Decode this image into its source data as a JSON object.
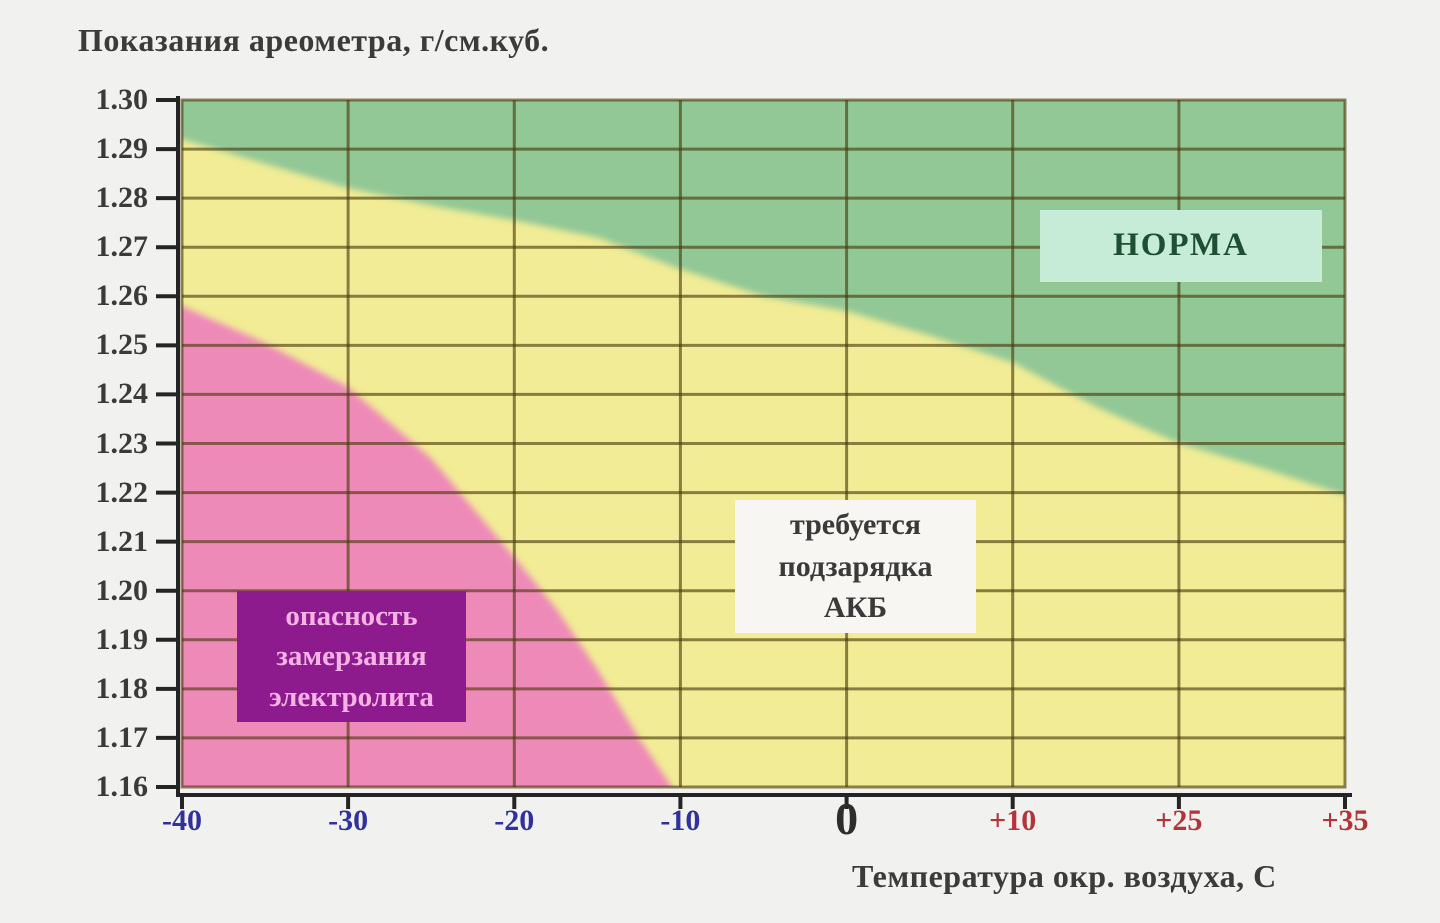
{
  "title": "Показания ареометра, г/см.куб.",
  "x_axis_title": "Температура окр. воздуха, С",
  "chart_data": {
    "type": "area",
    "title": "Показания ареометра, г/см.куб.",
    "xlabel": "Температура окр. воздуха, С",
    "ylabel": "Показания ареометра, г/см.куб.",
    "ylim": [
      1.16,
      1.3
    ],
    "grid": true,
    "y_tick_labels": [
      "1.30",
      "1.29",
      "1.28",
      "1.27",
      "1.26",
      "1.25",
      "1.24",
      "1.23",
      "1.22",
      "1.21",
      "1.20",
      "1.19",
      "1.18",
      "1.17",
      "1.16"
    ],
    "x_tick_labels": [
      {
        "label": "-40",
        "color": "#31319b",
        "emphasis": false
      },
      {
        "label": "-30",
        "color": "#31319b",
        "emphasis": false
      },
      {
        "label": "-20",
        "color": "#31319b",
        "emphasis": false
      },
      {
        "label": "-10",
        "color": "#31319b",
        "emphasis": false
      },
      {
        "label": "0",
        "color": "#2d2d2d",
        "emphasis": true
      },
      {
        "label": "+10",
        "color": "#b33338",
        "emphasis": false
      },
      {
        "label": "+25",
        "color": "#b33338",
        "emphasis": false
      },
      {
        "label": "+35",
        "color": "#b33338",
        "emphasis": false
      }
    ],
    "colors": {
      "normal_zone": "#92c796",
      "recharge_zone": "#f1ec95",
      "freeze_zone": "#ee8ab8",
      "gridline": "rgba(73,55,10,0.62)",
      "axis": "#242424",
      "background": "#f1f1ef"
    },
    "boundaries": {
      "note": "x given as category index 0..7 over ticks [-40,-30,-20,-10,0,+10,+25,+35]; y is hydrometer reading g/cm3",
      "normal_over_recharge": {
        "points": [
          [
            0,
            1.292
          ],
          [
            0.5,
            1.287
          ],
          [
            1,
            1.282
          ],
          [
            1.5,
            1.2785
          ],
          [
            2,
            1.2755
          ],
          [
            2.5,
            1.272
          ],
          [
            3,
            1.2655
          ],
          [
            3.5,
            1.26
          ],
          [
            4,
            1.257
          ],
          [
            4.5,
            1.252
          ],
          [
            5,
            1.2465
          ],
          [
            5.5,
            1.2375
          ],
          [
            6,
            1.23
          ],
          [
            6.5,
            1.225
          ],
          [
            7,
            1.2195
          ]
        ]
      },
      "freeze_under_recharge": {
        "points": [
          [
            0,
            1.258
          ],
          [
            0.5,
            1.2505
          ],
          [
            1,
            1.2415
          ],
          [
            1.5,
            1.227
          ],
          [
            2,
            1.2068
          ],
          [
            2.25,
            1.1965
          ],
          [
            2.5,
            1.184
          ],
          [
            2.75,
            1.17
          ],
          [
            2.95,
            1.16
          ]
        ]
      }
    },
    "zone_labels": [
      {
        "name": "norma",
        "text": "НОРМА",
        "box_bg": "#c6ecd7",
        "text_color": "#1d4f35"
      },
      {
        "name": "recharge",
        "text": "требуется\nподзарядка\nАКБ",
        "box_bg": "#f7f6f3",
        "text_color": "#3a3a3a"
      },
      {
        "name": "freeze",
        "text": "опасность\nзамерзания\nэлектролита",
        "box_bg": "#8e1b8e",
        "text_color": "#f4b3e4"
      }
    ]
  }
}
